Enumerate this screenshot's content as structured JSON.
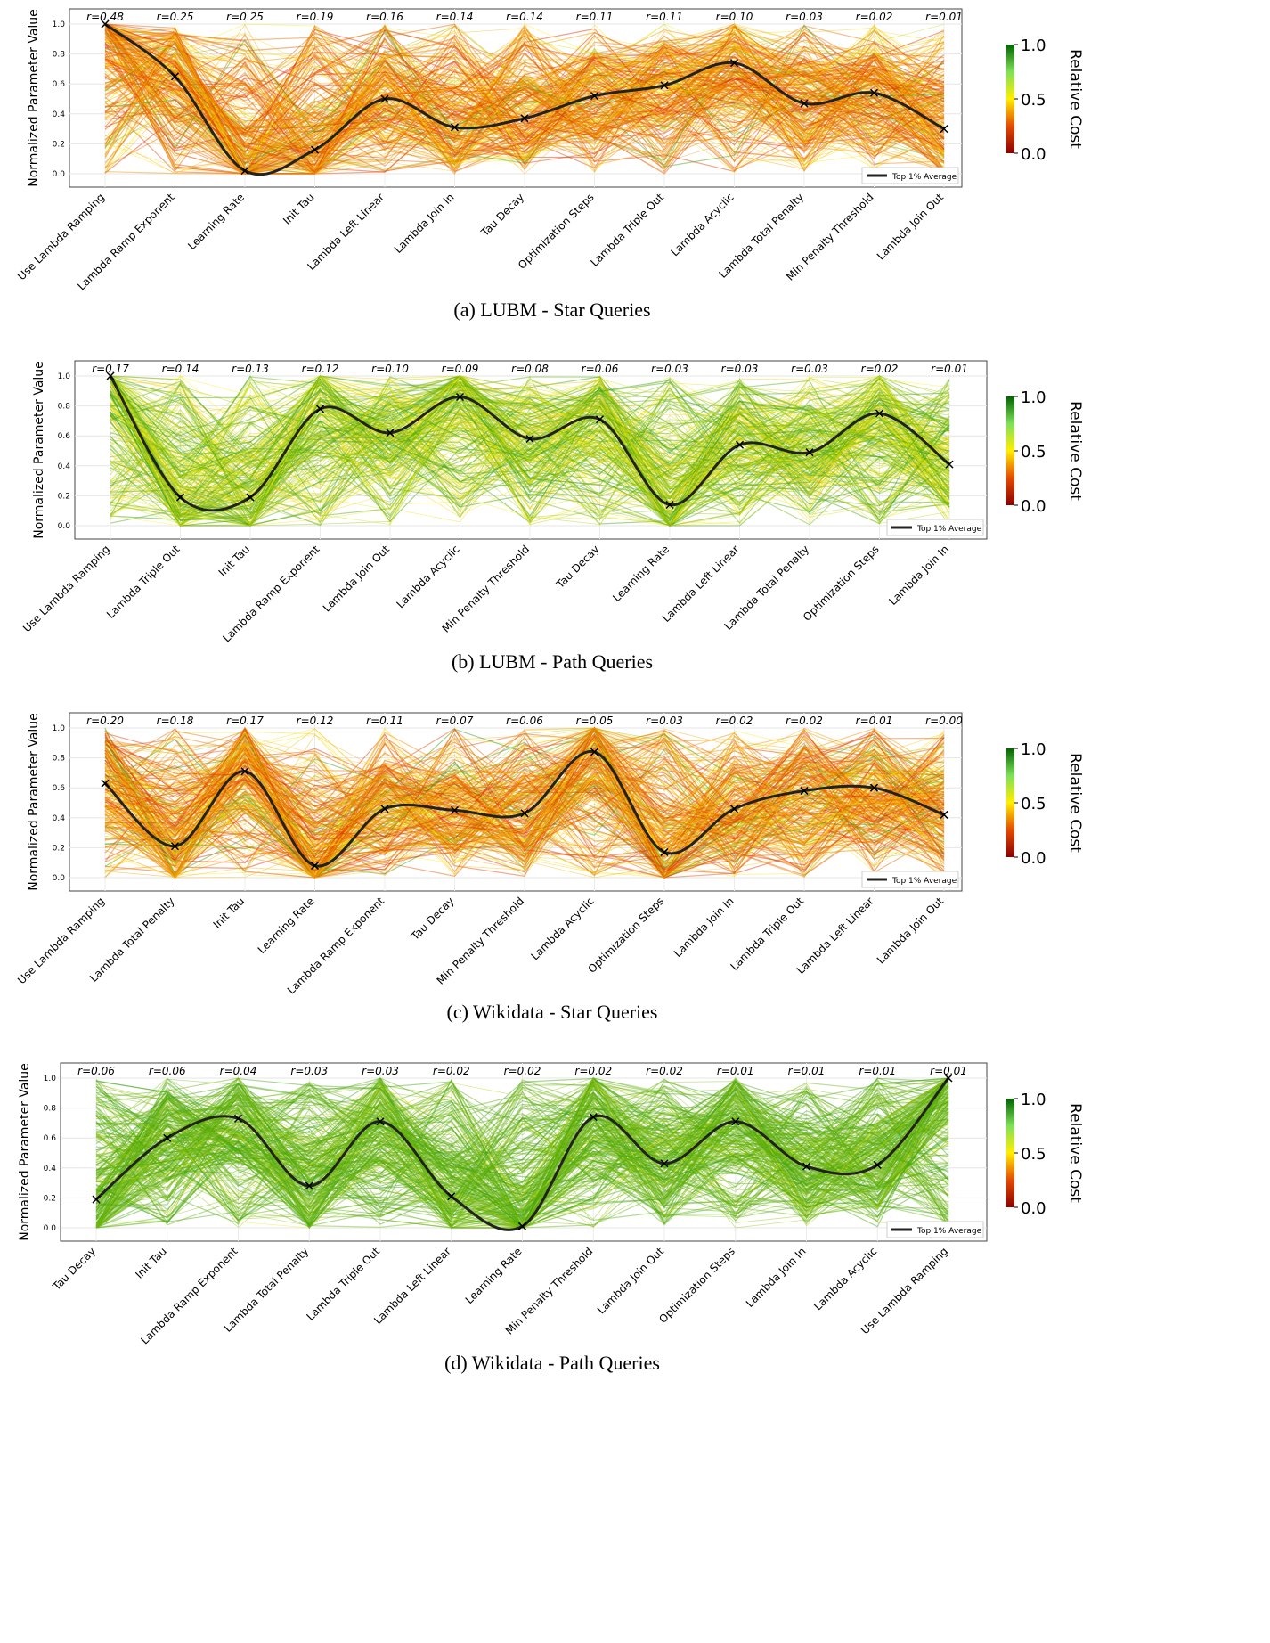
{
  "chart_data": [
    {
      "type": "line",
      "subtype": "parallel-coordinates",
      "caption": "(a) LUBM - Star Queries",
      "axes": [
        "Use Lambda Ramping",
        "Lambda Ramp Exponent",
        "Learning Rate",
        "Init Tau",
        "Lambda Left Linear",
        "Lambda Join In",
        "Tau Decay",
        "Optimization Steps",
        "Lambda Triple Out",
        "Lambda Acyclic",
        "Lambda Total Penalty",
        "Min Penalty Threshold",
        "Lambda Join Out"
      ],
      "r": [
        "r=0.48",
        "r=0.25",
        "r=0.25",
        "r=0.19",
        "r=0.16",
        "r=0.14",
        "r=0.14",
        "r=0.11",
        "r=0.11",
        "r=0.10",
        "r=0.03",
        "r=0.02",
        "r=0.01"
      ],
      "top1_average": [
        1.0,
        0.65,
        0.02,
        0.16,
        0.5,
        0.31,
        0.37,
        0.52,
        0.59,
        0.74,
        0.47,
        0.54,
        0.3
      ],
      "dominant_cost": "low"
    },
    {
      "type": "line",
      "subtype": "parallel-coordinates",
      "caption": "(b) LUBM - Path Queries",
      "axes": [
        "Use Lambda Ramping",
        "Lambda Triple Out",
        "Init Tau",
        "Lambda Ramp Exponent",
        "Lambda Join Out",
        "Lambda Acyclic",
        "Min Penalty Threshold",
        "Tau Decay",
        "Learning Rate",
        "Lambda Left Linear",
        "Lambda Total Penalty",
        "Optimization Steps",
        "Lambda Join In"
      ],
      "r": [
        "r=0.17",
        "r=0.14",
        "r=0.13",
        "r=0.12",
        "r=0.10",
        "r=0.09",
        "r=0.08",
        "r=0.06",
        "r=0.03",
        "r=0.03",
        "r=0.03",
        "r=0.02",
        "r=0.01"
      ],
      "top1_average": [
        1.0,
        0.19,
        0.19,
        0.78,
        0.62,
        0.86,
        0.58,
        0.71,
        0.14,
        0.54,
        0.49,
        0.75,
        0.41
      ],
      "dominant_cost": "mixed"
    },
    {
      "type": "line",
      "subtype": "parallel-coordinates",
      "caption": "(c) Wikidata - Star Queries",
      "axes": [
        "Use Lambda Ramping",
        "Lambda Total Penalty",
        "Init Tau",
        "Learning Rate",
        "Lambda Ramp Exponent",
        "Tau Decay",
        "Min Penalty Threshold",
        "Lambda Acyclic",
        "Optimization Steps",
        "Lambda Join In",
        "Lambda Triple Out",
        "Lambda Left Linear",
        "Lambda Join Out"
      ],
      "r": [
        "r=0.20",
        "r=0.18",
        "r=0.17",
        "r=0.12",
        "r=0.11",
        "r=0.07",
        "r=0.06",
        "r=0.05",
        "r=0.03",
        "r=0.02",
        "r=0.02",
        "r=0.01",
        "r=0.00"
      ],
      "top1_average": [
        0.63,
        0.21,
        0.71,
        0.08,
        0.46,
        0.45,
        0.43,
        0.84,
        0.17,
        0.46,
        0.58,
        0.6,
        0.42
      ],
      "dominant_cost": "low"
    },
    {
      "type": "line",
      "subtype": "parallel-coordinates",
      "caption": "(d) Wikidata - Path Queries",
      "axes": [
        "Tau Decay",
        "Init Tau",
        "Lambda Ramp Exponent",
        "Lambda Total Penalty",
        "Lambda Triple Out",
        "Lambda Left Linear",
        "Learning Rate",
        "Min Penalty Threshold",
        "Lambda Join Out",
        "Optimization Steps",
        "Lambda Join In",
        "Lambda Acyclic",
        "Use Lambda Ramping"
      ],
      "r": [
        "r=0.06",
        "r=0.06",
        "r=0.04",
        "r=0.03",
        "r=0.03",
        "r=0.02",
        "r=0.02",
        "r=0.02",
        "r=0.02",
        "r=0.01",
        "r=0.01",
        "r=0.01",
        "r=0.01"
      ],
      "top1_average": [
        0.19,
        0.6,
        0.73,
        0.28,
        0.71,
        0.21,
        0.01,
        0.74,
        0.43,
        0.71,
        0.41,
        0.42,
        1.0
      ],
      "dominant_cost": "high"
    }
  ],
  "common": {
    "ylabel": "Normalized Parameter Value",
    "yticks": [
      "0.0",
      "0.2",
      "0.4",
      "0.6",
      "0.8",
      "1.0"
    ],
    "legend": "Top 1% Average",
    "colorbar_label": "Relative Cost",
    "colorbar_ticks": [
      "0.0",
      "0.5",
      "1.0"
    ],
    "colors": {
      "low": "#cc2200",
      "mid": "#ffee00",
      "high": "#1a8a1a",
      "avg": "#222222"
    }
  }
}
